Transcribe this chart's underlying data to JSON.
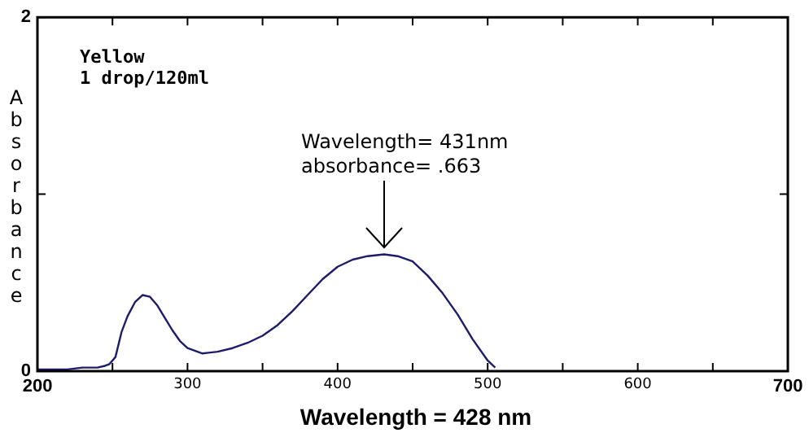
{
  "chart_data": {
    "type": "line",
    "title": "Yellow",
    "subtitle": "1 drop/120ml",
    "xlabel": "Wavelength = 428 nm",
    "ylabel": "Absorbance",
    "x": [
      200,
      210,
      220,
      230,
      240,
      245,
      248,
      252,
      256,
      260,
      265,
      270,
      275,
      280,
      285,
      290,
      295,
      300,
      310,
      320,
      330,
      340,
      350,
      360,
      370,
      380,
      390,
      400,
      410,
      420,
      431,
      440,
      450,
      460,
      470,
      480,
      490,
      500,
      505
    ],
    "series": [
      {
        "color": "#1c1c6b",
        "values": [
          0.01,
          0.01,
          0.01,
          0.02,
          0.02,
          0.03,
          0.04,
          0.08,
          0.22,
          0.31,
          0.39,
          0.43,
          0.42,
          0.37,
          0.3,
          0.23,
          0.17,
          0.13,
          0.1,
          0.11,
          0.13,
          0.16,
          0.2,
          0.26,
          0.34,
          0.43,
          0.52,
          0.59,
          0.63,
          0.65,
          0.66,
          0.65,
          0.62,
          0.54,
          0.44,
          0.32,
          0.18,
          0.06,
          0.02
        ]
      }
    ],
    "xlim": [
      200,
      700
    ],
    "xticks": [
      200,
      {
        "value": 250,
        "label": null
      },
      300,
      {
        "value": 350,
        "label": null
      },
      400,
      {
        "value": 450,
        "label": null
      },
      500,
      {
        "value": 550,
        "label": null
      },
      600,
      {
        "value": 650,
        "label": null
      },
      700
    ],
    "ylim": [
      0,
      2
    ],
    "yticks": [
      0,
      {
        "value": 1,
        "label": null
      },
      2
    ],
    "annotations": [
      {
        "text": "Wavelength= 431nm\nabsorbance= .663",
        "x": 431,
        "y": 0.663
      }
    ],
    "grid": false,
    "legend": false,
    "marker": "none",
    "line_style": "solid"
  }
}
